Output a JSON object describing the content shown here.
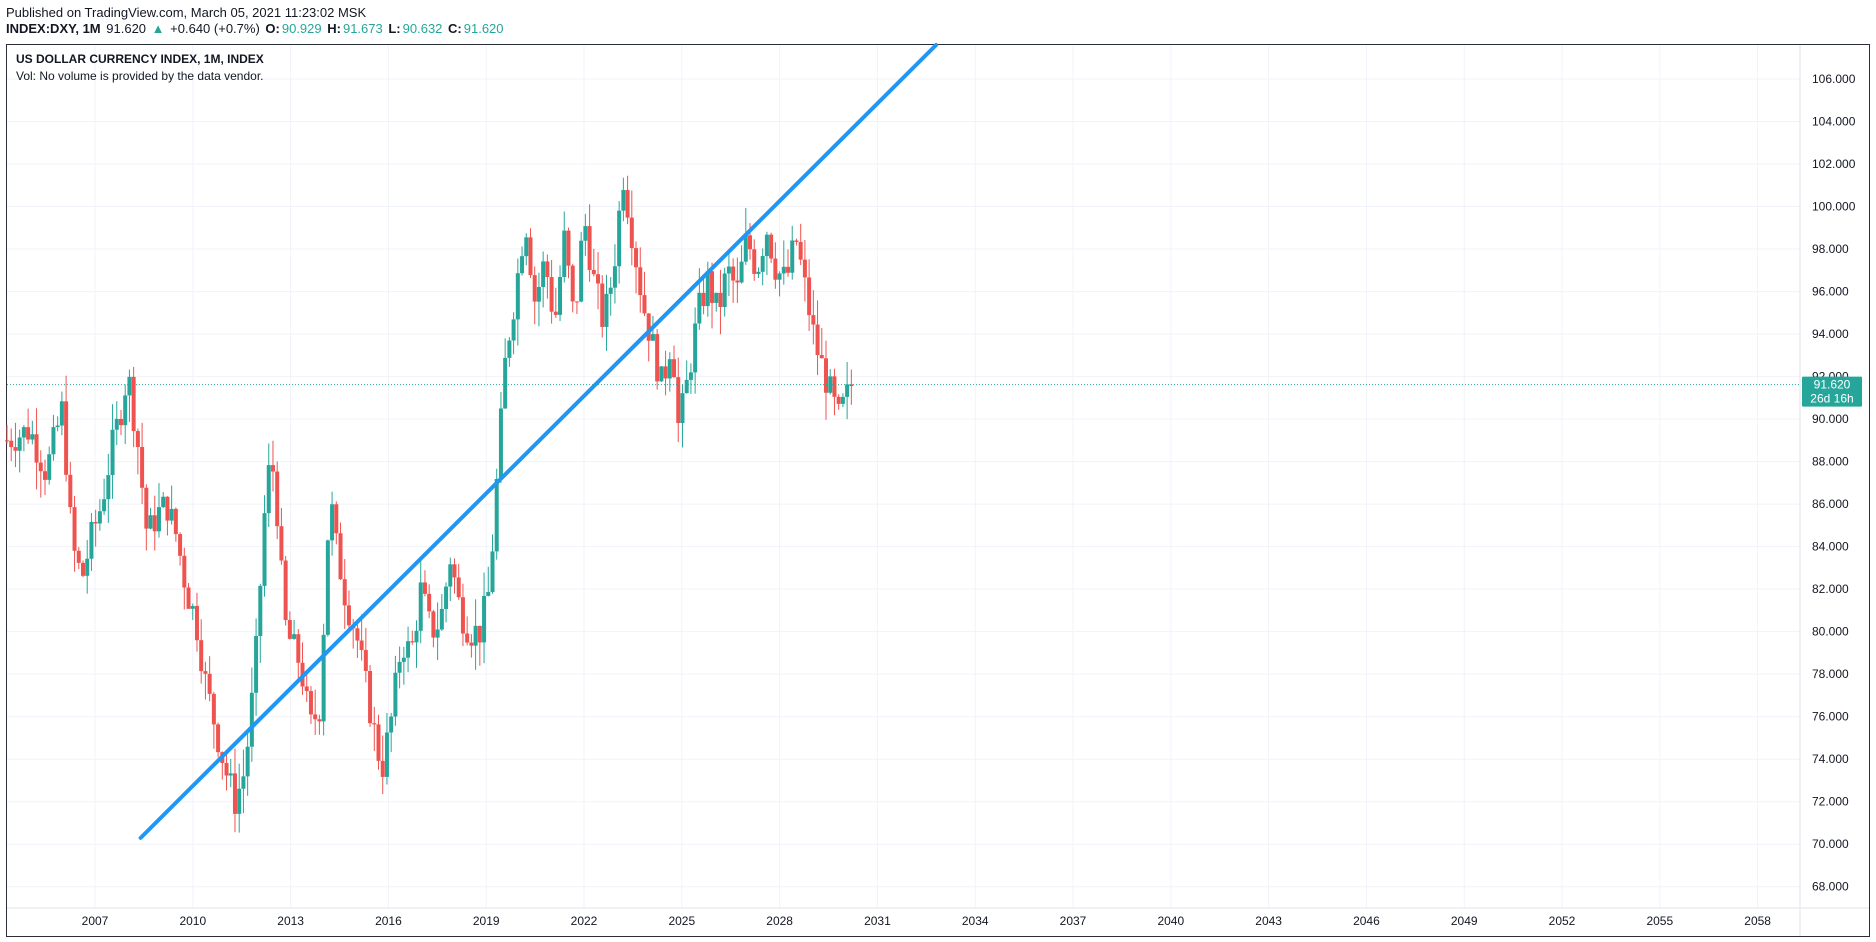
{
  "header": {
    "published": "Published on TradingView.com, March 05, 2021 11:23:02 MSK",
    "symbol": "INDEX:DXY, 1M",
    "last": "91.620",
    "change_arrow": "▲",
    "change": "+0.640 (+0.7%)",
    "o_label": "O:",
    "o_value": "90.929",
    "h_label": "H:",
    "h_value": "91.673",
    "l_label": "L:",
    "l_value": "90.632",
    "c_label": "C:",
    "c_value": "91.620"
  },
  "legend": {
    "title": "US DOLLAR CURRENCY INDEX, 1M, INDEX",
    "volume_note": "Vol: No volume is provided by the data vendor."
  },
  "colors": {
    "up": "#26a69a",
    "down": "#ef5350",
    "trendline": "#2196f3",
    "grid": "#f0f3fa",
    "price_tag": "#26a69a"
  },
  "chart_data": {
    "type": "candlestick",
    "title": "US DOLLAR CURRENCY INDEX, 1M, INDEX",
    "x_range": [
      2004.3,
      2059.3
    ],
    "y_range": [
      67.0,
      107.6
    ],
    "x_ticks": [
      "2007",
      "2010",
      "2013",
      "2016",
      "2019",
      "2022",
      "2025",
      "2028",
      "2031",
      "2034",
      "2037",
      "2040",
      "2043",
      "2046",
      "2049",
      "2052",
      "2055",
      "2058"
    ],
    "y_ticks": [
      "68.000",
      "70.000",
      "72.000",
      "74.000",
      "76.000",
      "78.000",
      "80.000",
      "82.000",
      "84.000",
      "86.000",
      "88.000",
      "90.000",
      "92.000",
      "94.000",
      "96.000",
      "98.000",
      "100.000",
      "102.000",
      "104.000",
      "106.000"
    ],
    "grid": true,
    "last_price": {
      "value": 91.62,
      "label": "91.620",
      "countdown": "26d 16h"
    },
    "trendline": {
      "x1": 2008.4,
      "y1": 70.3,
      "x2": 2032.8,
      "y2": 107.6
    },
    "price_path": [
      [
        2004.3,
        89.0
      ],
      [
        2005.0,
        89.5
      ],
      [
        2005.5,
        87.5
      ],
      [
        2006.0,
        90.5
      ],
      [
        2006.3,
        84.0
      ],
      [
        2006.6,
        82.5
      ],
      [
        2006.9,
        84.5
      ],
      [
        2007.2,
        86.0
      ],
      [
        2007.5,
        88.5
      ],
      [
        2007.8,
        90.5
      ],
      [
        2008.0,
        92.2
      ],
      [
        2008.3,
        89.0
      ],
      [
        2008.6,
        84.5
      ],
      [
        2008.9,
        85.5
      ],
      [
        2009.2,
        86.0
      ],
      [
        2009.5,
        84.5
      ],
      [
        2009.8,
        82.0
      ],
      [
        2010.1,
        80.5
      ],
      [
        2010.4,
        77.5
      ],
      [
        2010.7,
        75.5
      ],
      [
        2011.0,
        73.5
      ],
      [
        2011.3,
        72.0
      ],
      [
        2011.6,
        73.5
      ],
      [
        2011.9,
        78.0
      ],
      [
        2012.2,
        85.5
      ],
      [
        2012.4,
        88.5
      ],
      [
        2012.6,
        85.5
      ],
      [
        2012.8,
        80.5
      ],
      [
        2013.0,
        79.5
      ],
      [
        2013.3,
        78.5
      ],
      [
        2013.6,
        75.5
      ],
      [
        2013.9,
        76.5
      ],
      [
        2014.2,
        86.5
      ],
      [
        2014.4,
        84.0
      ],
      [
        2014.7,
        81.5
      ],
      [
        2015.0,
        80.0
      ],
      [
        2015.3,
        77.5
      ],
      [
        2015.6,
        75.0
      ],
      [
        2015.8,
        73.5
      ],
      [
        2016.1,
        76.0
      ],
      [
        2016.4,
        79.5
      ],
      [
        2016.7,
        79.0
      ],
      [
        2017.0,
        82.0
      ],
      [
        2017.3,
        80.0
      ],
      [
        2017.6,
        80.5
      ],
      [
        2017.9,
        83.5
      ],
      [
        2018.2,
        81.0
      ],
      [
        2018.5,
        80.0
      ],
      [
        2018.8,
        80.0
      ],
      [
        2019.1,
        82.0
      ],
      [
        2019.3,
        86.5
      ],
      [
        2019.6,
        93.0
      ],
      [
        2019.9,
        96.0
      ],
      [
        2020.2,
        99.5
      ],
      [
        2020.5,
        95.5
      ],
      [
        2020.8,
        97.5
      ],
      [
        2021.1,
        94.5
      ],
      [
        2021.4,
        98.5
      ],
      [
        2021.7,
        94.5
      ],
      [
        2022.0,
        99.5
      ],
      [
        2022.3,
        96.5
      ],
      [
        2022.6,
        94.5
      ],
      [
        2022.9,
        97.0
      ],
      [
        2023.2,
        101.5
      ],
      [
        2023.5,
        98.5
      ],
      [
        2023.8,
        95.5
      ],
      [
        2024.1,
        93.5
      ],
      [
        2024.4,
        91.5
      ],
      [
        2024.7,
        94.0
      ],
      [
        2024.9,
        89.5
      ],
      [
        2025.2,
        92.0
      ],
      [
        2025.5,
        95.0
      ],
      [
        2025.8,
        96.5
      ],
      [
        2026.1,
        95.0
      ],
      [
        2026.4,
        97.0
      ],
      [
        2026.7,
        96.0
      ],
      [
        2027.0,
        98.5
      ],
      [
        2027.3,
        97.0
      ],
      [
        2027.6,
        99.0
      ],
      [
        2027.9,
        97.0
      ],
      [
        2028.2,
        96.5
      ],
      [
        2028.5,
        98.5
      ],
      [
        2028.8,
        96.0
      ],
      [
        2029.1,
        93.5
      ],
      [
        2029.4,
        92.0
      ],
      [
        2029.6,
        91.0
      ],
      [
        2029.8,
        90.0
      ],
      [
        2030.0,
        90.8
      ],
      [
        2030.2,
        91.6
      ]
    ]
  }
}
